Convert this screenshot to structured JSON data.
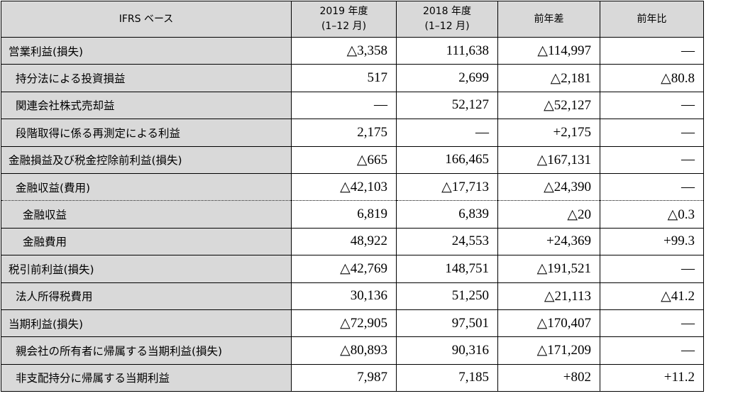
{
  "header": {
    "basis": "IFRS ベース",
    "fy2019_line1": "2019 年度",
    "fy2019_line2": "(1–12 月)",
    "fy2018_line1": "2018 年度",
    "fy2018_line2": "(1–12 月)",
    "diff": "前年差",
    "ratio": "前年比"
  },
  "rows": [
    {
      "label": "営業利益(損失)",
      "fy2019": "△3,358",
      "fy2018": "111,638",
      "diff": "△114,997",
      "ratio": "—"
    },
    {
      "label": "持分法による投資損益",
      "fy2019": "517",
      "fy2018": "2,699",
      "diff": "△2,181",
      "ratio": "△80.8"
    },
    {
      "label": "関連会社株式売却益",
      "fy2019": "—",
      "fy2018": "52,127",
      "diff": "△52,127",
      "ratio": "—"
    },
    {
      "label": "段階取得に係る再測定による利益",
      "fy2019": "2,175",
      "fy2018": "—",
      "diff": "+2,175",
      "ratio": "—"
    },
    {
      "label": "金融損益及び税金控除前利益(損失)",
      "fy2019": "△665",
      "fy2018": "166,465",
      "diff": "△167,131",
      "ratio": "—"
    },
    {
      "label": "金融収益(費用)",
      "fy2019": "△42,103",
      "fy2018": "△17,713",
      "diff": "△24,390",
      "ratio": "—"
    },
    {
      "label": "金融収益",
      "fy2019": "6,819",
      "fy2018": "6,839",
      "diff": "△20",
      "ratio": "△0.3"
    },
    {
      "label": "金融費用",
      "fy2019": "48,922",
      "fy2018": "24,553",
      "diff": "+24,369",
      "ratio": "+99.3"
    },
    {
      "label": "税引前利益(損失)",
      "fy2019": "△42,769",
      "fy2018": "148,751",
      "diff": "△191,521",
      "ratio": "—"
    },
    {
      "label": "法人所得税費用",
      "fy2019": "30,136",
      "fy2018": "51,250",
      "diff": "△21,113",
      "ratio": "△41.2"
    },
    {
      "label": "当期利益(損失)",
      "fy2019": "△72,905",
      "fy2018": "97,501",
      "diff": "△170,407",
      "ratio": "—"
    },
    {
      "label": "親会社の所有者に帰属する当期利益(損失)",
      "fy2019": "△80,893",
      "fy2018": "90,316",
      "diff": "△171,209",
      "ratio": "—"
    },
    {
      "label": "非支配持分に帰属する当期利益",
      "fy2019": "7,987",
      "fy2018": "7,185",
      "diff": "+802",
      "ratio": "+11.2"
    }
  ]
}
